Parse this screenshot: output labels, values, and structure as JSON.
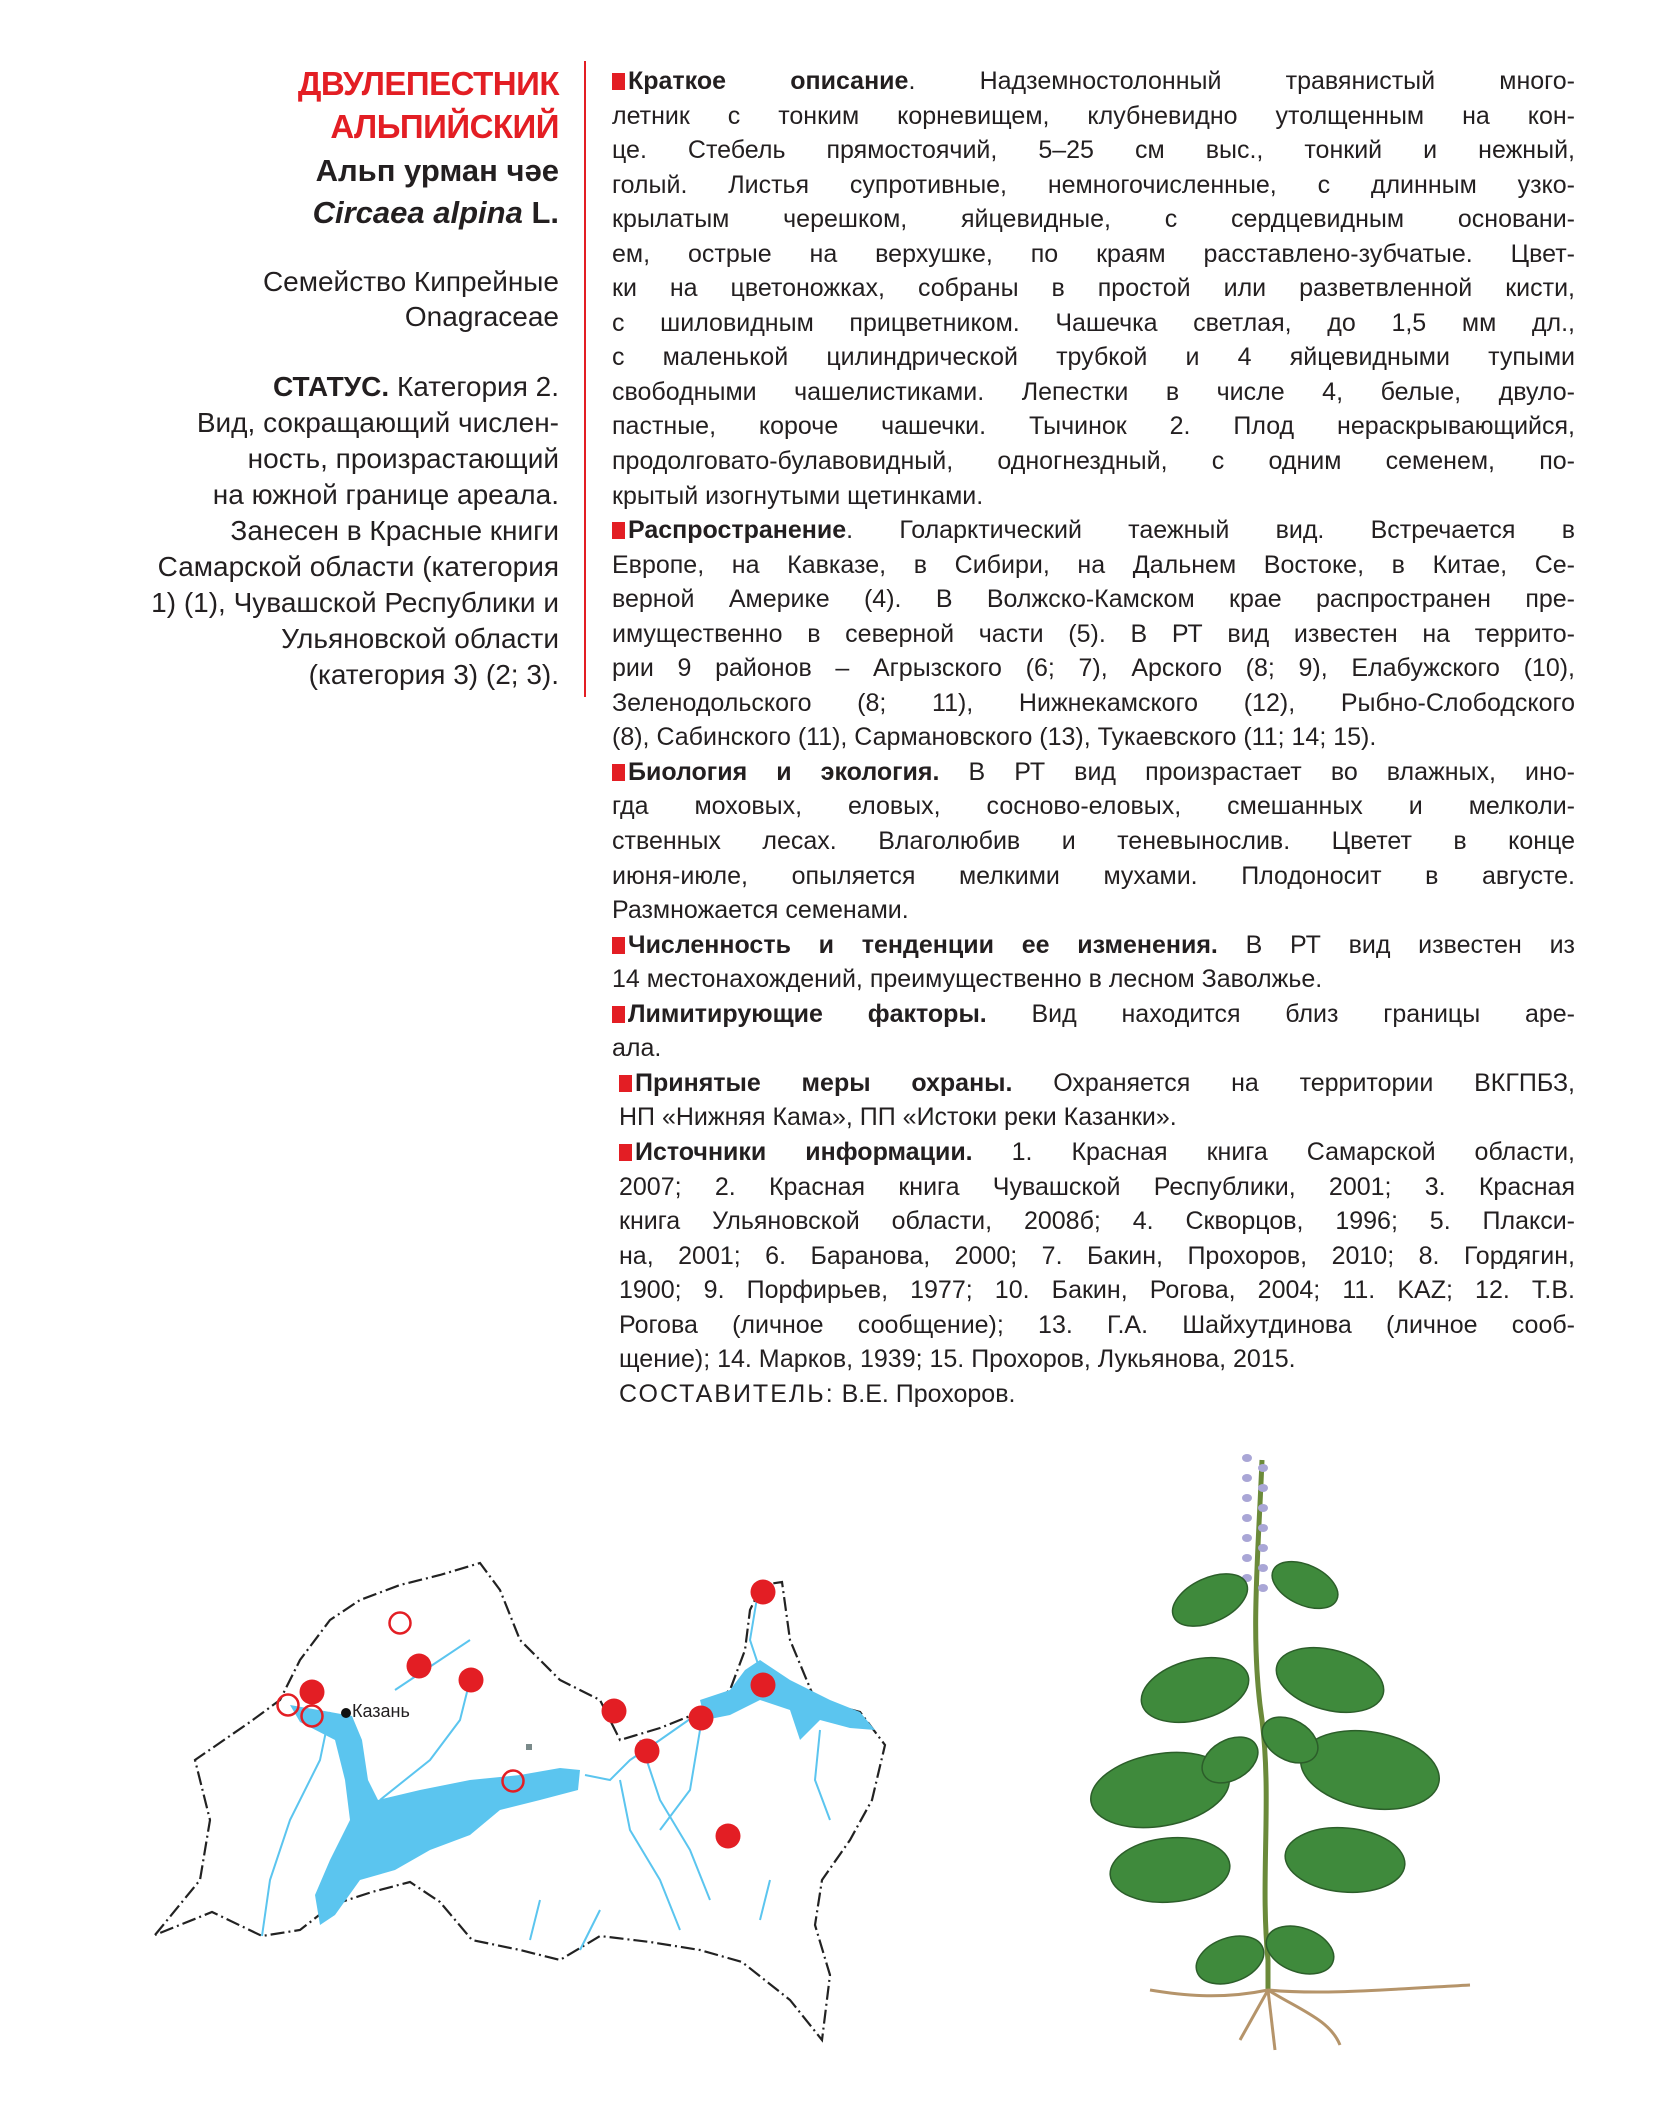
{
  "header": {
    "title_line1": "ДВУЛЕПЕСТНИК",
    "title_line2": "АЛЬПИЙСКИЙ",
    "tatar_name": "Альп урман чәе",
    "latin_genus_species": "Circaea alpina",
    "latin_author": " L.",
    "family_ru": "Семейство Кипрейные",
    "family_latin": "Onagraceae"
  },
  "status": {
    "label": "СТАТУС.",
    "lines": [
      " Категория 2.",
      "Вид, сокращающий числен-",
      "ность, произрастающий",
      "на южной границе ареала.",
      "Занесен в Красные книги",
      "Самарской области (категория",
      "1) (1),  Чувашской Республики и",
      "Ульяновской области",
      "(категория 3) (2; 3)."
    ]
  },
  "sections": [
    {
      "heading": "Краткое описание",
      "lines": [
        ". Надземностолонный травянистый много-",
        "летник с тонким корневищем, клубневидно утолщенным на кон-",
        "це. Стебель прямостоячий, 5–25 см выс., тонкий и нежный,",
        "голый. Листья супротивные, немногочисленные, с длинным узко-",
        "крылатым черешком, яйцевидные, с сердцевидным основани-",
        "ем, острые на верхушке, по краям расставлено-зубчатые. Цвет-",
        "ки на цветоножках, собраны в простой или разветвленной кисти,",
        "с шиловидным прицветником. Чашечка светлая, до 1,5 мм дл.,",
        "с маленькой цилиндрической трубкой и 4 яйцевидными тупыми",
        "свободными чашелистиками. Лепестки в числе 4, белые, двуло-",
        "пастные, короче чашечки. Тычинок 2. Плод нераскрывающийся,",
        "продолговато-булавовидный, одногнездный, с одним семенем, по-",
        "крытый изогнутыми щетинками."
      ]
    },
    {
      "heading": "Распространение",
      "lines": [
        ". Голарктический таежный вид. Встречается в",
        "Европе, на Кавказе, в Сибири, на Дальнем Востоке, в Китае, Се-",
        "верной Америке (4). В Волжско-Камском крае распространен пре-",
        "имущественно в северной части (5). В РТ вид известен на террито-",
        "рии 9 районов – Агрызского (6; 7), Арского (8; 9), Елабужского (10),",
        "Зеленодольского (8; 11), Нижнекамского (12), Рыбно-Слободского",
        "(8), Сабинского (11), Сармановского (13), Тукаевского (11; 14; 15)."
      ]
    },
    {
      "heading": "Биология и экология.",
      "lines": [
        " В РТ вид произрастает во влажных, ино-",
        "гда моховых, еловых, сосново-еловых, смешанных и мелколи-",
        "ственных лесах. Влаголюбив и теневынослив. Цветет в конце",
        "июня-июле, опыляется мелкими мухами. Плодоносит в августе.",
        "Размножается семенами."
      ]
    },
    {
      "heading": "Численность и тенденции ее изменения.",
      "lines": [
        " В РТ вид известен из",
        "14 местонахождений, преимущественно в лесном Заволжье."
      ]
    },
    {
      "heading": "Лимитирующие факторы.",
      "lines": [
        " Вид находится близ границы аре-",
        "ала."
      ]
    },
    {
      "heading": "Принятые меры охраны.",
      "indent": true,
      "lines": [
        " Охраняется на территории ВКГПБЗ,",
        "НП «Нижняя Кама», ПП «Истоки реки Казанки»."
      ]
    },
    {
      "heading": "Источники информации.",
      "indent": true,
      "lines": [
        " 1. Красная книга Самарской области,",
        "2007; 2. Красная книга  Чувашской Республики, 2001; 3. Красная",
        "книга Ульяновской области, 2008б; 4. Скворцов, 1996; 5. Плакси-",
        "на, 2001; 6. Баранова, 2000; 7. Бакин, Прохоров, 2010; 8. Гордягин,",
        "1900; 9. Порфирьев, 1977; 10. Бакин, Рогова, 2004; 11. KAZ; 12. Т.В.",
        "Рогова (личное сообщение); 13. Г.А. Шайхутдинова (личное сооб-",
        "щение); 14. Марков, 1939; 15. Прохоров, Лукьянова, 2015."
      ]
    }
  ],
  "author": {
    "label": "СОСТАВИТЕЛЬ:",
    "name": " В.Е. Прохоров."
  },
  "map": {
    "city_label": "Казань"
  },
  "colors": {
    "accent_red": "#e31e24",
    "water_blue": "#5bc5ef",
    "text": "#231f20"
  }
}
